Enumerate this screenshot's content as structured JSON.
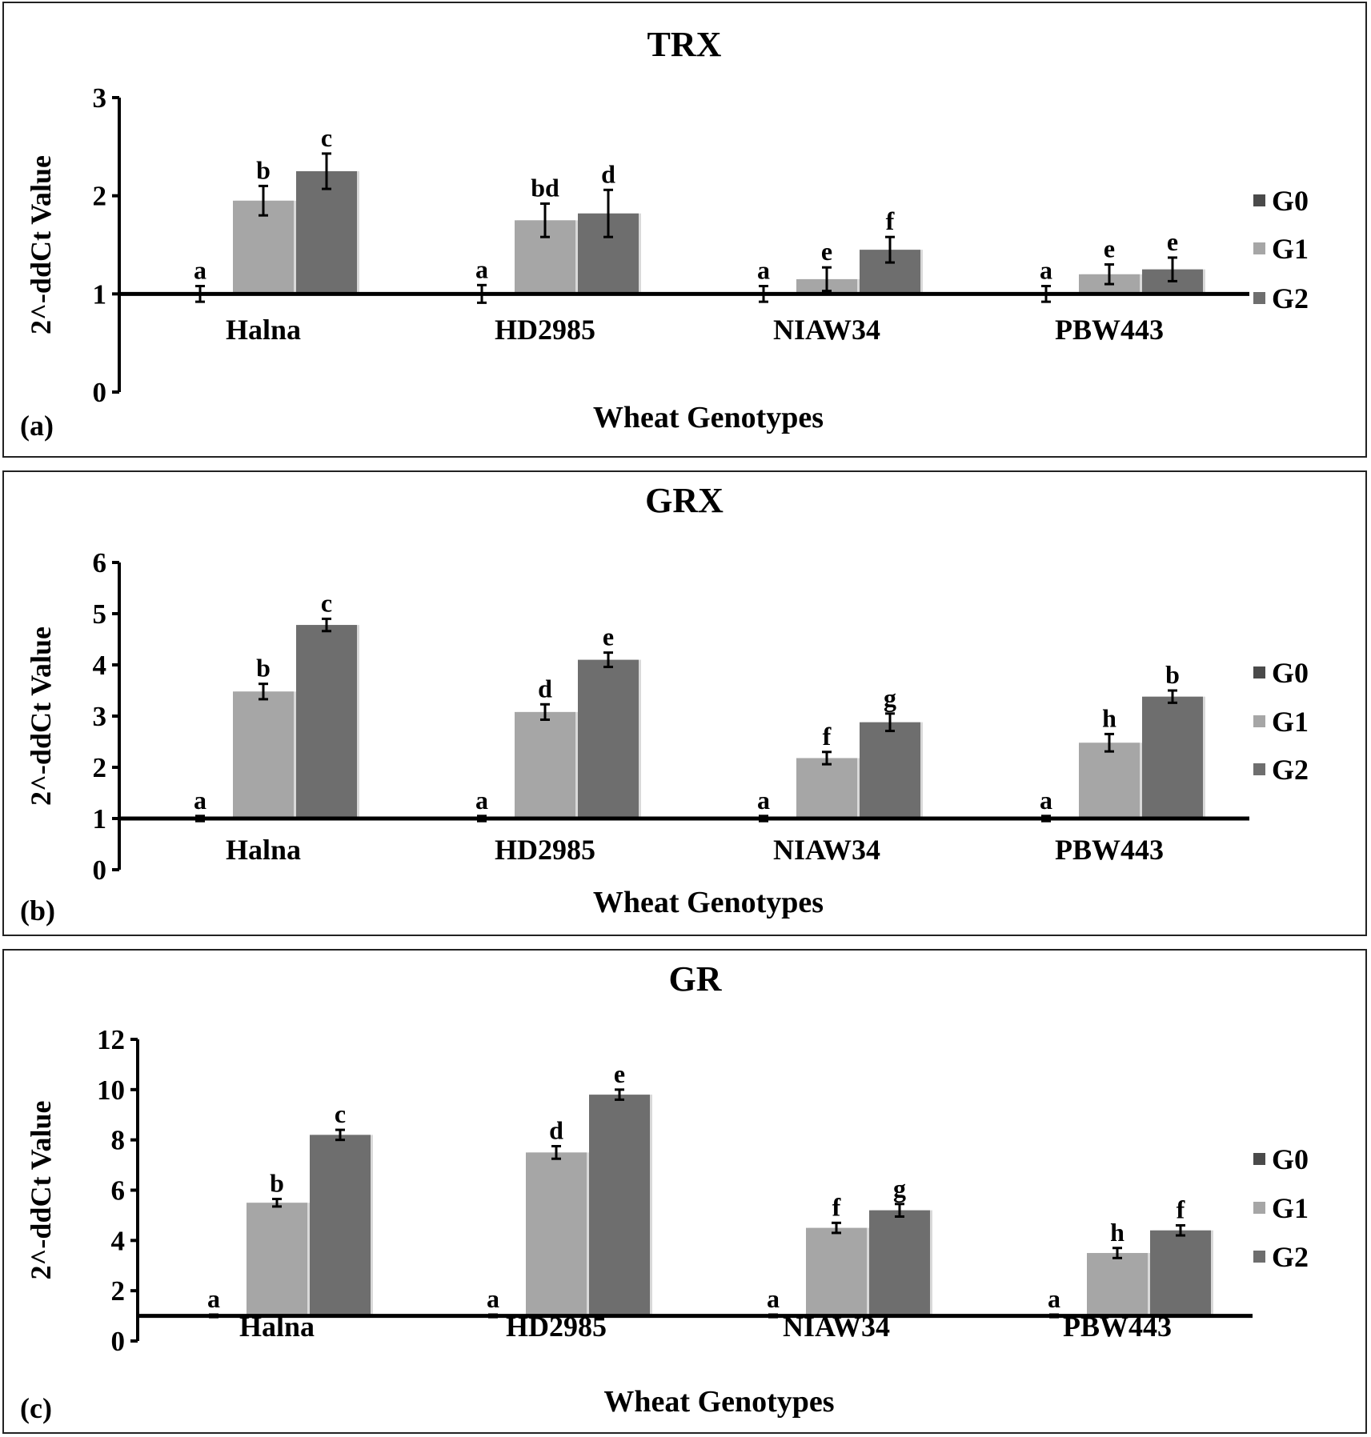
{
  "colors": {
    "G0": "#4a4a4a",
    "G1": "#a6a6a6",
    "G2": "#6e6e6e",
    "axis": "#000000"
  },
  "chart_data": [
    {
      "type": "bar",
      "panel_label": "(a)",
      "title": "TRX",
      "xlabel": "Wheat Genotypes",
      "ylabel": "2^-ddCt Value",
      "ylim": [
        0,
        3
      ],
      "yticks": [
        0,
        1,
        2,
        3
      ],
      "baseline": 1,
      "categories": [
        "Halna",
        "HD2985",
        "NIAW34",
        "PBW443"
      ],
      "legend": [
        "G0",
        "G1",
        "G2"
      ],
      "series": [
        {
          "name": "G0",
          "values": [
            1,
            1,
            1,
            1
          ],
          "errors": [
            0.08,
            0.09,
            0.08,
            0.08
          ],
          "letters": [
            "a",
            "a",
            "a",
            "a"
          ]
        },
        {
          "name": "G1",
          "values": [
            1.95,
            1.75,
            1.15,
            1.2
          ],
          "errors": [
            0.15,
            0.17,
            0.12,
            0.1
          ],
          "letters": [
            "b",
            "bd",
            "e",
            "e"
          ]
        },
        {
          "name": "G2",
          "values": [
            2.25,
            1.82,
            1.45,
            1.25
          ],
          "errors": [
            0.18,
            0.24,
            0.13,
            0.12
          ],
          "letters": [
            "c",
            "d",
            "f",
            "e"
          ]
        }
      ]
    },
    {
      "type": "bar",
      "panel_label": "(b)",
      "title": "GRX",
      "xlabel": "Wheat Genotypes",
      "ylabel": "2^-ddCt Value",
      "ylim": [
        0,
        6
      ],
      "yticks": [
        0,
        1,
        2,
        3,
        4,
        5,
        6
      ],
      "baseline": 1,
      "categories": [
        "Halna",
        "HD2985",
        "NIAW34",
        "PBW443"
      ],
      "legend": [
        "G0",
        "G1",
        "G2"
      ],
      "series": [
        {
          "name": "G0",
          "values": [
            1,
            1,
            1,
            1
          ],
          "errors": [
            0.05,
            0.05,
            0.05,
            0.05
          ],
          "letters": [
            "a",
            "a",
            "a",
            "a"
          ]
        },
        {
          "name": "G1",
          "values": [
            3.48,
            3.08,
            2.18,
            2.48
          ],
          "errors": [
            0.15,
            0.15,
            0.12,
            0.17
          ],
          "letters": [
            "b",
            "d",
            "f",
            "h"
          ]
        },
        {
          "name": "G2",
          "values": [
            4.78,
            4.1,
            2.88,
            3.38
          ],
          "errors": [
            0.12,
            0.14,
            0.17,
            0.12
          ],
          "letters": [
            "c",
            "e",
            "g",
            "b"
          ]
        }
      ]
    },
    {
      "type": "bar",
      "panel_label": "(c)",
      "title": "GR",
      "xlabel": "Wheat Genotypes",
      "ylabel": "2^-ddCt Value",
      "ylim": [
        0,
        12
      ],
      "yticks": [
        0,
        2,
        4,
        6,
        8,
        10,
        12
      ],
      "baseline": 1,
      "categories": [
        "Halna",
        "HD2985",
        "NIAW34",
        "PBW443"
      ],
      "legend": [
        "G0",
        "G1",
        "G2"
      ],
      "series": [
        {
          "name": "G0",
          "values": [
            1,
            1,
            1,
            1
          ],
          "errors": [
            0.05,
            0.05,
            0.05,
            0.05
          ],
          "letters": [
            "a",
            "a",
            "a",
            "a"
          ]
        },
        {
          "name": "G1",
          "values": [
            5.5,
            7.5,
            4.5,
            3.5
          ],
          "errors": [
            0.15,
            0.25,
            0.2,
            0.2
          ],
          "letters": [
            "b",
            "d",
            "f",
            "h"
          ]
        },
        {
          "name": "G2",
          "values": [
            8.2,
            9.8,
            5.2,
            4.4
          ],
          "errors": [
            0.2,
            0.2,
            0.25,
            0.2
          ],
          "letters": [
            "c",
            "e",
            "g",
            "f"
          ]
        }
      ]
    }
  ]
}
